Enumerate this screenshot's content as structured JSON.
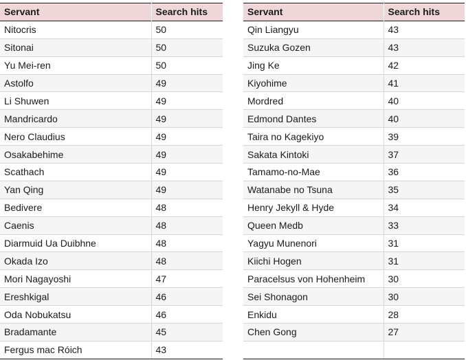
{
  "headers": {
    "servant": "Servant",
    "hits": "Search hits"
  },
  "left": [
    {
      "name": "Nitocris",
      "hits": "50"
    },
    {
      "name": "Sitonai",
      "hits": "50"
    },
    {
      "name": "Yu Mei-ren",
      "hits": "50"
    },
    {
      "name": "Astolfo",
      "hits": "49"
    },
    {
      "name": "Li Shuwen",
      "hits": "49"
    },
    {
      "name": "Mandricardo",
      "hits": "49"
    },
    {
      "name": "Nero Claudius",
      "hits": "49"
    },
    {
      "name": "Osakabehime",
      "hits": "49"
    },
    {
      "name": "Scathach",
      "hits": "49"
    },
    {
      "name": "Yan Qing",
      "hits": "49"
    },
    {
      "name": "Bedivere",
      "hits": "48"
    },
    {
      "name": "Caenis",
      "hits": "48"
    },
    {
      "name": "Diarmuid Ua Duibhne",
      "hits": "48"
    },
    {
      "name": "Okada Izo",
      "hits": "48"
    },
    {
      "name": "Mori Nagayoshi",
      "hits": "47"
    },
    {
      "name": "Ereshkigal",
      "hits": "46"
    },
    {
      "name": "Oda Nobukatsu",
      "hits": "46"
    },
    {
      "name": "Bradamante",
      "hits": "45"
    },
    {
      "name": "Fergus mac Róich",
      "hits": "43"
    }
  ],
  "right": [
    {
      "name": "Qin Liangyu",
      "hits": "43"
    },
    {
      "name": "Suzuka Gozen",
      "hits": "43"
    },
    {
      "name": "Jing Ke",
      "hits": "42"
    },
    {
      "name": "Kiyohime",
      "hits": "41"
    },
    {
      "name": "Mordred",
      "hits": "40"
    },
    {
      "name": "Edmond Dantes",
      "hits": "40"
    },
    {
      "name": "Taira no Kagekiyo",
      "hits": "39"
    },
    {
      "name": "Sakata Kintoki",
      "hits": "37"
    },
    {
      "name": "Tamamo-no-Mae",
      "hits": "36"
    },
    {
      "name": "Watanabe no Tsuna",
      "hits": "35"
    },
    {
      "name": "Henry Jekyll & Hyde",
      "hits": "34"
    },
    {
      "name": "Queen Medb",
      "hits": "33"
    },
    {
      "name": "Yagyu Munenori",
      "hits": "31"
    },
    {
      "name": "Kiichi Hogen",
      "hits": "31"
    },
    {
      "name": "Paracelsus von Hohenheim",
      "hits": "30"
    },
    {
      "name": "Sei Shonagon",
      "hits": "30"
    },
    {
      "name": "Enkidu",
      "hits": "28"
    },
    {
      "name": "Chen Gong",
      "hits": "27"
    },
    {
      "name": "",
      "hits": ""
    }
  ]
}
